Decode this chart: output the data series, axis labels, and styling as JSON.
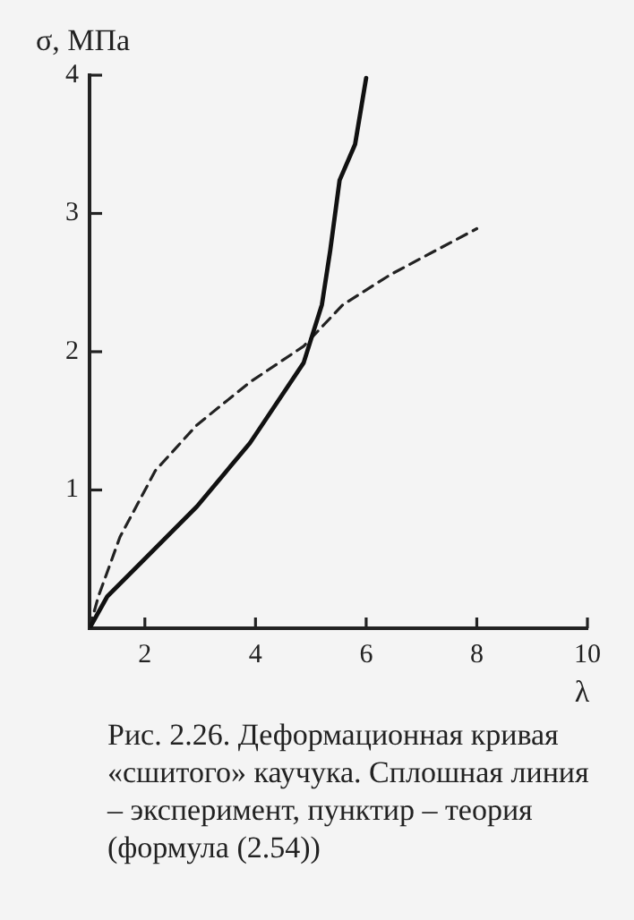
{
  "chart_data": {
    "type": "line",
    "xlabel": "λ",
    "ylabel": "σ, МПа",
    "annotations": [
      "Рис. 2.26. Деформационная кривая «сшитого» каучука. Сплошная линия – эксперимент, пунктир – теория (формула (2.54))"
    ],
    "xlim": [
      1,
      10
    ],
    "xticks": [
      2,
      4,
      6,
      8,
      10
    ],
    "ylim": [
      0,
      4
    ],
    "yticks": [
      1,
      2,
      3,
      4
    ],
    "grid": false,
    "legend": false,
    "marker": "none",
    "series": [
      {
        "color": "#111111",
        "line_style": "solid",
        "x": [
          1,
          1.32,
          1.97,
          2.94,
          3.9,
          4.87,
          5.2,
          5.35,
          5.52,
          5.8,
          6.0
        ],
        "values": [
          0,
          0.23,
          0.49,
          0.88,
          1.34,
          1.92,
          2.34,
          2.73,
          3.24,
          3.5,
          3.98
        ]
      },
      {
        "color": "#222222",
        "line_style": "dashed",
        "x": [
          1,
          1.16,
          1.55,
          2.19,
          2.94,
          3.9,
          4.87,
          5.58,
          6.45,
          8.0
        ],
        "values": [
          0,
          0.23,
          0.66,
          1.14,
          1.47,
          1.78,
          2.04,
          2.34,
          2.56,
          2.89
        ]
      }
    ]
  }
}
